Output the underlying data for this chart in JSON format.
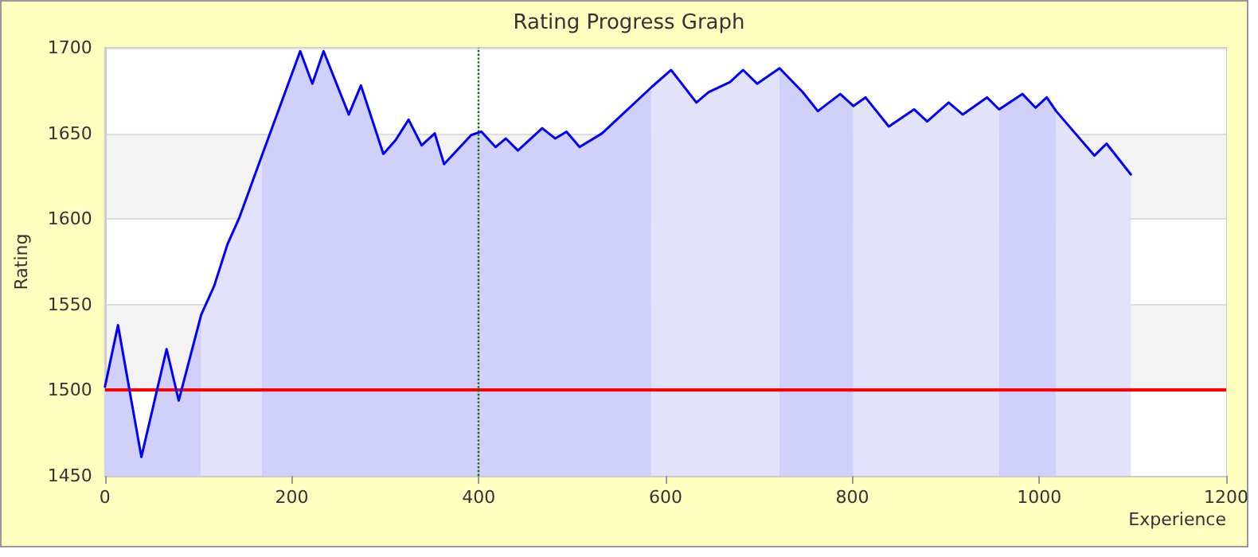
{
  "chart_data": {
    "type": "line",
    "title": "Rating Progress Graph",
    "xlabel": "Experience",
    "ylabel": "Rating",
    "xlim": [
      0,
      1200
    ],
    "xticks": [
      0,
      200,
      400,
      600,
      800,
      1000,
      1200
    ],
    "ylim": [
      1450,
      1700
    ],
    "yticks": [
      1450,
      1500,
      1550,
      1600,
      1650,
      1700
    ],
    "grid": "y",
    "marker": "none",
    "line_style": "solid",
    "series": [
      {
        "type": "area",
        "color": "#d0d0fa",
        "x": [
          0,
          14,
          39,
          66,
          79,
          103
        ],
        "values": [
          1502,
          1538,
          1461,
          1524,
          1494,
          1544
        ]
      },
      {
        "type": "area",
        "color": "#e2e2fb",
        "x": [
          103,
          117,
          131,
          144,
          168
        ],
        "values": [
          1544,
          1561,
          1585,
          1601,
          1637
        ]
      },
      {
        "type": "area",
        "color": "#d0d0fa",
        "x": [
          168,
          209,
          222,
          234,
          261,
          274,
          298,
          311,
          325,
          339,
          353,
          363,
          392,
          403,
          418,
          429,
          442,
          468,
          482,
          494,
          508,
          532,
          585
        ],
        "values": [
          1637,
          1698,
          1679,
          1698,
          1661,
          1678,
          1638,
          1646,
          1658,
          1643,
          1650,
          1632,
          1649,
          1651,
          1642,
          1647,
          1640,
          1653,
          1647,
          1651,
          1642,
          1650,
          1677
        ]
      },
      {
        "type": "area",
        "color": "#e2e2fb",
        "x": [
          585,
          606,
          633,
          646,
          669,
          683,
          698,
          722
        ],
        "values": [
          1677,
          1687,
          1668,
          1674,
          1680,
          1687,
          1679,
          1688
        ]
      },
      {
        "type": "area",
        "color": "#d0d0fa",
        "x": [
          722,
          747,
          763,
          787,
          801
        ],
        "values": [
          1688,
          1674,
          1663,
          1673,
          1666
        ]
      },
      {
        "type": "area",
        "color": "#e2e2fb",
        "x": [
          801,
          814,
          839,
          866,
          880,
          903,
          918,
          944,
          957
        ],
        "values": [
          1666,
          1671,
          1654,
          1664,
          1657,
          1668,
          1661,
          1671,
          1664
        ]
      },
      {
        "type": "area",
        "color": "#d0d0fa",
        "x": [
          957,
          982,
          996,
          1008,
          1018
        ],
        "values": [
          1664,
          1673,
          1665,
          1671,
          1663
        ]
      },
      {
        "type": "area",
        "color": "#e2e2fb",
        "x": [
          1018,
          1059,
          1072,
          1098
        ],
        "values": [
          1663,
          1637,
          1644,
          1626
        ]
      },
      {
        "color": "#0000ff",
        "x": [
          0,
          14,
          39,
          66,
          79,
          103,
          117,
          131,
          144,
          168,
          209,
          222,
          234,
          261,
          274,
          298,
          311,
          325,
          339,
          353,
          363,
          392,
          403,
          418,
          429,
          442,
          468,
          482,
          494,
          508,
          532,
          585,
          606,
          633,
          646,
          669,
          683,
          698,
          722,
          747,
          763,
          787,
          801,
          814,
          839,
          866,
          880,
          903,
          918,
          944,
          957,
          982,
          996,
          1008,
          1018,
          1059,
          1072,
          1098
        ],
        "values": [
          1502,
          1538,
          1461,
          1524,
          1494,
          1544,
          1561,
          1585,
          1601,
          1637,
          1698,
          1679,
          1698,
          1661,
          1678,
          1638,
          1646,
          1658,
          1643,
          1650,
          1632,
          1649,
          1651,
          1642,
          1647,
          1640,
          1653,
          1647,
          1651,
          1642,
          1650,
          1677,
          1687,
          1668,
          1674,
          1680,
          1687,
          1679,
          1688,
          1674,
          1663,
          1673,
          1666,
          1671,
          1654,
          1664,
          1657,
          1668,
          1661,
          1671,
          1664,
          1673,
          1665,
          1671,
          1663,
          1637,
          1644,
          1626
        ]
      }
    ],
    "ref_lines": [
      {
        "axis": "y",
        "value": 1500,
        "color": "#ff0000",
        "line_style": "solid"
      },
      {
        "axis": "x",
        "value": 400,
        "color": "#007000",
        "line_style": "dotted"
      }
    ]
  }
}
